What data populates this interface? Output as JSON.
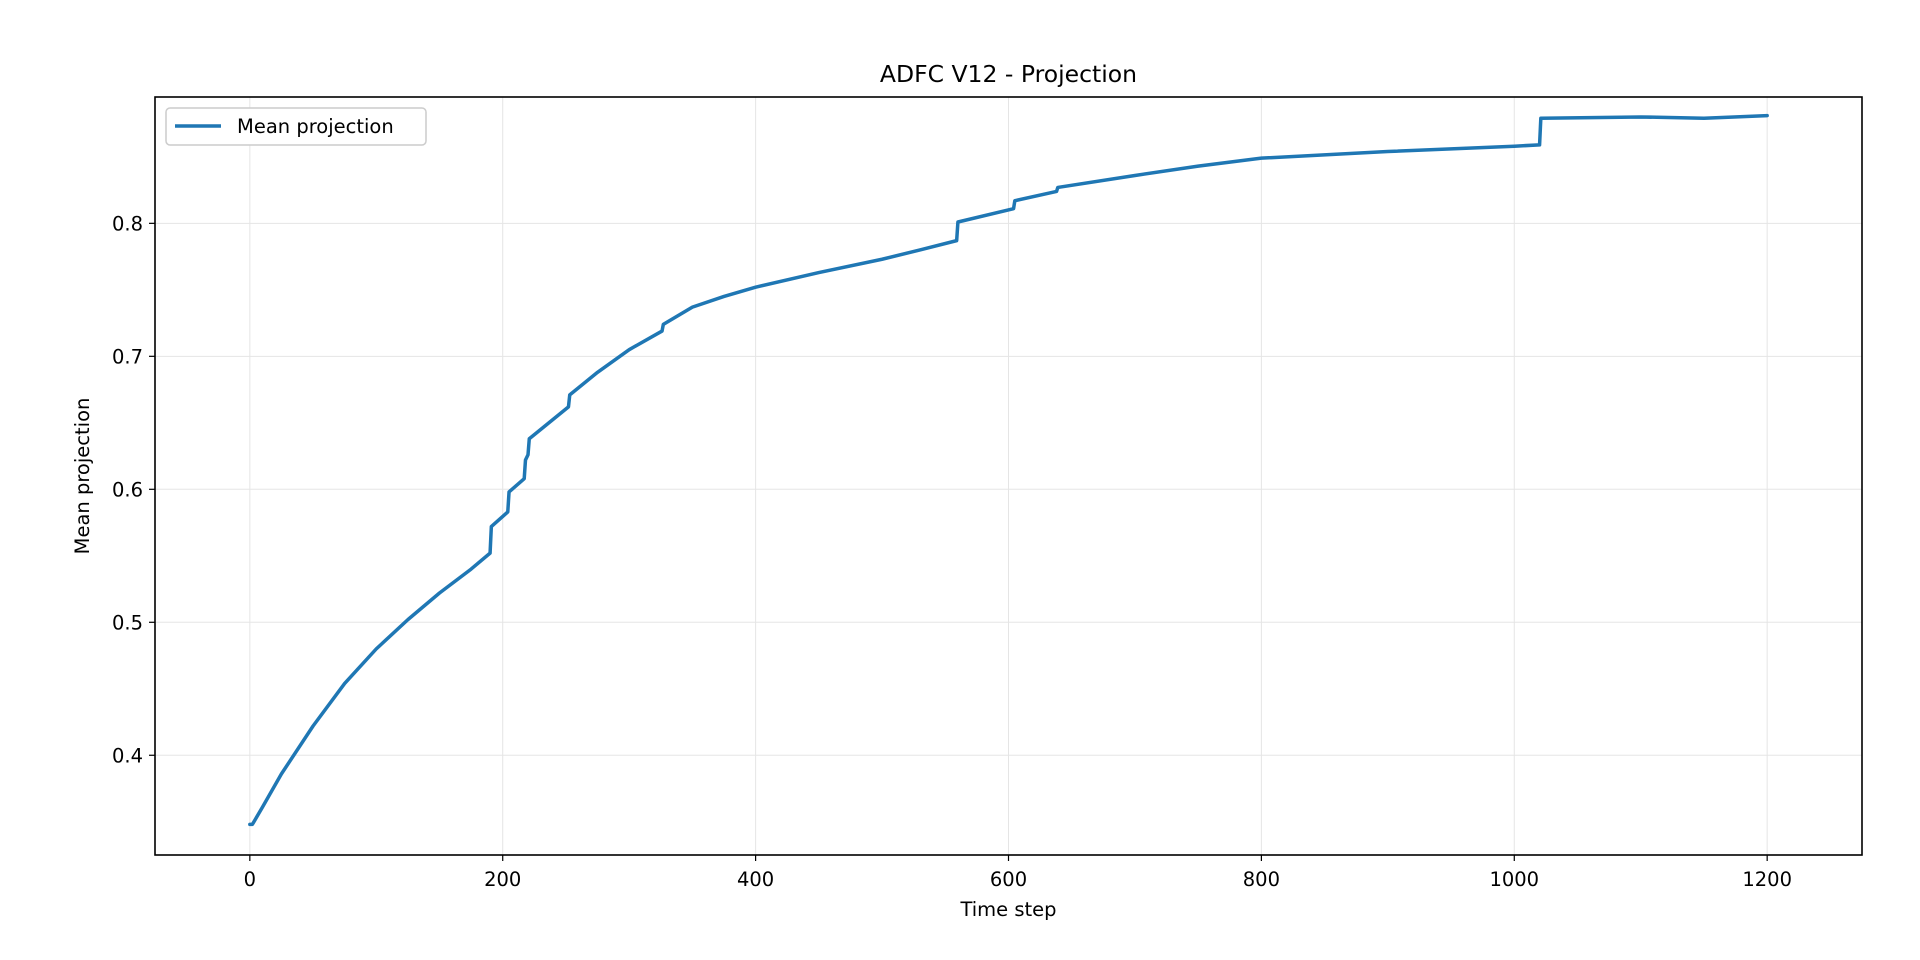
{
  "chart_data": {
    "type": "line",
    "title": "ADFC V12 - Projection",
    "xlabel": "Time step",
    "ylabel": "Mean projection",
    "xlim": [
      -75,
      1275
    ],
    "ylim": [
      0.325,
      0.895
    ],
    "xticks": [
      0,
      200,
      400,
      600,
      800,
      1000,
      1200
    ],
    "yticks": [
      0.4,
      0.5,
      0.6,
      0.7,
      0.8
    ],
    "xtick_labels": [
      "0",
      "200",
      "400",
      "600",
      "800",
      "1000",
      "1200"
    ],
    "ytick_labels": [
      "0.4",
      "0.5",
      "0.6",
      "0.7",
      "0.8"
    ],
    "grid": true,
    "legend_position": "upper-left",
    "colors": {
      "series": "#1f77b4",
      "grid": "#e5e5e5",
      "axes": "#000000"
    },
    "series": [
      {
        "name": "Mean projection",
        "x": [
          0,
          2,
          10,
          25,
          50,
          75,
          100,
          125,
          150,
          175,
          190,
          191,
          204,
          205,
          217,
          218,
          220,
          221,
          252,
          253,
          275,
          300,
          326,
          327,
          350,
          375,
          400,
          450,
          500,
          530,
          559,
          560,
          604,
          605,
          638,
          639,
          700,
          750,
          800,
          900,
          1000,
          1020,
          1021,
          1100,
          1150,
          1200
        ],
        "y": [
          0.348,
          0.348,
          0.361,
          0.386,
          0.422,
          0.454,
          0.48,
          0.502,
          0.522,
          0.54,
          0.552,
          0.572,
          0.583,
          0.598,
          0.608,
          0.622,
          0.626,
          0.638,
          0.662,
          0.671,
          0.688,
          0.705,
          0.719,
          0.724,
          0.737,
          0.745,
          0.752,
          0.763,
          0.773,
          0.78,
          0.787,
          0.801,
          0.811,
          0.817,
          0.824,
          0.827,
          0.836,
          0.843,
          0.849,
          0.854,
          0.858,
          0.859,
          0.879,
          0.88,
          0.879,
          0.881
        ]
      }
    ]
  }
}
